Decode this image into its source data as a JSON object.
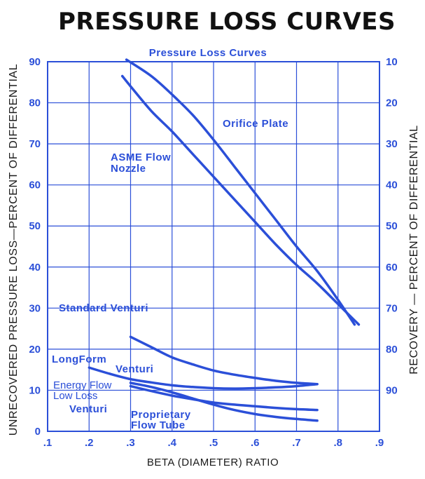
{
  "chart_data": {
    "type": "line",
    "title": "PRESSURE LOSS CURVES",
    "subtitle": "Pressure Loss Curves",
    "xlabel": "BETA (DIAMETER) RATIO",
    "ylabel": "UNRECOVERED PRESSURE LOSS—PERCENT OF DIFFERENTIAL",
    "y2label": "RECOVERY — PERCENT OF DIFFERENTIAL",
    "xlim": [
      0.1,
      0.9
    ],
    "ylim": [
      0,
      90
    ],
    "grid": true,
    "x_ticks": [
      ".1",
      ".2",
      ".3",
      ".4",
      ".5",
      ".6",
      ".7",
      ".8",
      ".9"
    ],
    "y_ticks": [
      "0",
      "10",
      "20",
      "30",
      "40",
      "50",
      "60",
      "70",
      "80",
      "90"
    ],
    "y2_ticks": [
      "10",
      "20",
      "30",
      "40",
      "50",
      "60",
      "70",
      "80",
      "90"
    ],
    "series": [
      {
        "name": "Orifice Plate",
        "x": [
          0.29,
          0.35,
          0.4,
          0.45,
          0.5,
          0.55,
          0.6,
          0.65,
          0.7,
          0.75,
          0.8,
          0.84
        ],
        "y": [
          90.5,
          86.5,
          82,
          77,
          71,
          64.5,
          58,
          51.5,
          45,
          39,
          32,
          26
        ]
      },
      {
        "name": "ASME Flow Nozzle",
        "x": [
          0.28,
          0.3,
          0.35,
          0.4,
          0.45,
          0.5,
          0.55,
          0.6,
          0.65,
          0.7,
          0.75,
          0.8,
          0.85
        ],
        "y": [
          86.5,
          84,
          78,
          73,
          67.5,
          62,
          56.5,
          51,
          45.5,
          40.5,
          36,
          31,
          26
        ]
      },
      {
        "name": "Standard Venturi",
        "x": [
          0.3,
          0.35,
          0.4,
          0.45,
          0.5,
          0.55,
          0.6,
          0.65,
          0.7,
          0.75
        ],
        "y": [
          23,
          20.5,
          18,
          16.3,
          14.8,
          13.8,
          13,
          12.3,
          11.8,
          11.5
        ]
      },
      {
        "name": "LongForm Venturi",
        "x": [
          0.2,
          0.25,
          0.3,
          0.35,
          0.4,
          0.45,
          0.5,
          0.55,
          0.6,
          0.65,
          0.7,
          0.75
        ],
        "y": [
          15.5,
          14,
          12.7,
          11.9,
          11.2,
          10.8,
          10.5,
          10.4,
          10.5,
          10.7,
          11,
          11.5
        ]
      },
      {
        "name": "Energy Flow Low Loss Venturi",
        "x": [
          0.3,
          0.35,
          0.4,
          0.45,
          0.5,
          0.55,
          0.6,
          0.65,
          0.7,
          0.75
        ],
        "y": [
          11,
          9.8,
          8.7,
          7.8,
          7,
          6.5,
          6.1,
          5.7,
          5.4,
          5.2
        ]
      },
      {
        "name": "Proprietary Flow Tube",
        "x": [
          0.3,
          0.35,
          0.4,
          0.45,
          0.5,
          0.55,
          0.6,
          0.65,
          0.7,
          0.75
        ],
        "y": [
          11.8,
          10.8,
          9.5,
          8,
          6.5,
          5.2,
          4.2,
          3.5,
          3,
          2.6
        ]
      }
    ],
    "annotations": {
      "orifice": "Orifice Plate",
      "asme_1": "ASME Flow",
      "asme_2": "Nozzle",
      "standard_venturi": "Standard Venturi",
      "longform_1": "LongForm",
      "longform_2": "Venturi",
      "energy_1": "Energy Flow",
      "energy_2": "Low Loss",
      "energy_3": "Venturi",
      "proprietary_1": "Proprietary",
      "proprietary_2": "Flow Tube"
    },
    "colors": {
      "line": "#2b4fd8",
      "title": "#111111"
    }
  }
}
